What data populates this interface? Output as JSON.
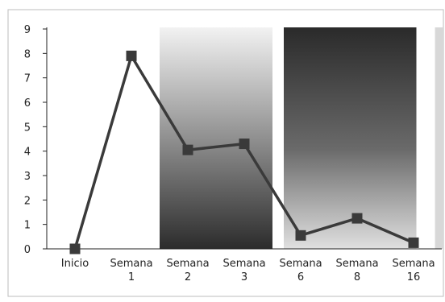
{
  "chart_data": {
    "type": "line",
    "categories": [
      "Inicio",
      "Semana 1",
      "Semana 2",
      "Semana 3",
      "Semana 6",
      "Semana 8",
      "Semana 16"
    ],
    "category_lines": [
      [
        "Inicio"
      ],
      [
        "Semana",
        "1"
      ],
      [
        "Semana",
        "2"
      ],
      [
        "Semana",
        "3"
      ],
      [
        "Semana",
        "6"
      ],
      [
        "Semana",
        "8"
      ],
      [
        "Semana",
        "16"
      ]
    ],
    "values": [
      0,
      7.9,
      4.05,
      4.3,
      0.55,
      1.25,
      0.25
    ],
    "ylim": [
      0,
      9
    ],
    "yticks": [
      "0",
      "1",
      "2",
      "3",
      "4",
      "5",
      "6",
      "7",
      "8",
      "9"
    ],
    "title": "",
    "xlabel": "",
    "ylabel": "",
    "grid": false,
    "legend": "none",
    "colors": {
      "line": "#3a3a3a",
      "marker": "#3a3a3a",
      "band_light": "#f2f2f2",
      "band_dark": "#2c2c2c",
      "axis": "#222222"
    }
  }
}
